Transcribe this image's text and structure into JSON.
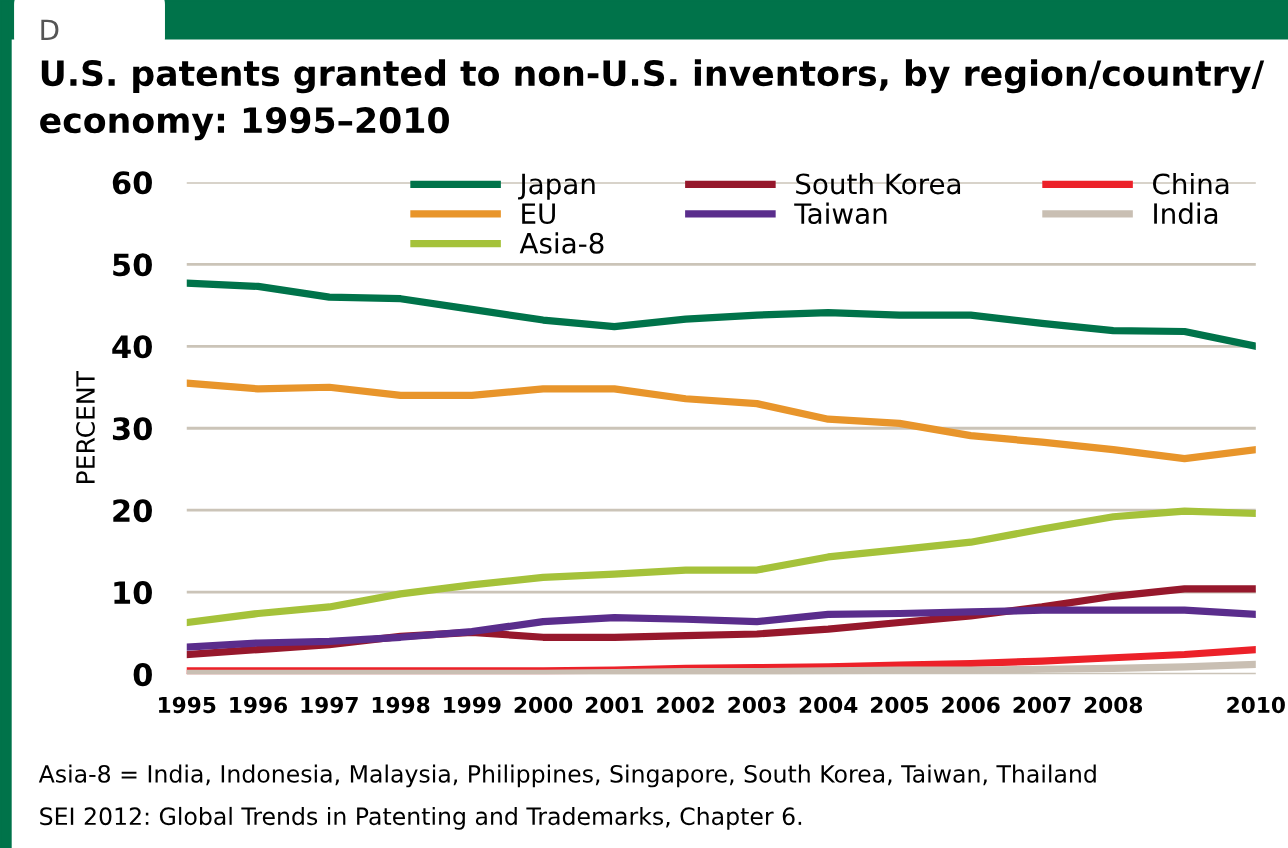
{
  "chart_data": {
    "type": "line",
    "title": "U.S. patents granted to non-U.S. inventors, by region/country/\neconomy: 1995–2010",
    "ylabel": "PERCENT",
    "x": [
      1995,
      1996,
      1997,
      1998,
      1999,
      2000,
      2001,
      2002,
      2003,
      2004,
      2005,
      2006,
      2007,
      2008,
      2009,
      2010
    ],
    "series": [
      {
        "name": "Japan",
        "color": "#00734a",
        "values": [
          47.7,
          47.3,
          46,
          45.8,
          44.5,
          43.2,
          42.4,
          43.3,
          43.8,
          44.1,
          43.8,
          43.8,
          42.8,
          41.9,
          41.8,
          40.0
        ]
      },
      {
        "name": "EU",
        "color": "#e8952b",
        "values": [
          35.5,
          34.8,
          35,
          34,
          34,
          34.8,
          34.8,
          33.6,
          33,
          31.1,
          30.6,
          29.1,
          28.3,
          27.4,
          26.3,
          27.4
        ]
      },
      {
        "name": "Asia-8",
        "color": "#a5c23a",
        "values": [
          6.3,
          7.4,
          8.2,
          9.8,
          10.9,
          11.8,
          12.2,
          12.7,
          12.7,
          14.3,
          15.2,
          16.1,
          17.7,
          19.2,
          19.9,
          19.6
        ]
      },
      {
        "name": "South Korea",
        "color": "#96182c",
        "values": [
          2.4,
          3,
          3.6,
          4.6,
          5.1,
          4.5,
          4.5,
          4.7,
          4.9,
          5.5,
          6.3,
          7.1,
          8.2,
          9.5,
          10.4,
          10.4
        ]
      },
      {
        "name": "Taiwan",
        "color": "#5a2d8c",
        "values": [
          3.3,
          3.8,
          4,
          4.5,
          5.2,
          6.4,
          6.9,
          6.7,
          6.4,
          7.3,
          7.4,
          7.6,
          7.8,
          7.8,
          7.8,
          7.3
        ]
      },
      {
        "name": "China",
        "color": "#ec2129",
        "values": [
          0.4,
          0.4,
          0.4,
          0.4,
          0.4,
          0.4,
          0.5,
          0.7,
          0.8,
          0.9,
          1.1,
          1.3,
          1.6,
          2.0,
          2.4,
          3.0
        ]
      },
      {
        "name": "India",
        "color": "#c9bfb3",
        "values": [
          0.1,
          0.1,
          0.1,
          0.1,
          0.1,
          0.1,
          0.2,
          0.3,
          0.3,
          0.4,
          0.5,
          0.5,
          0.6,
          0.7,
          0.9,
          1.2
        ]
      }
    ],
    "xlim": [
      1995,
      2010
    ],
    "xticks": [
      1995,
      1996,
      1997,
      1998,
      1999,
      2000,
      2001,
      2002,
      2003,
      2004,
      2005,
      2006,
      2007,
      2008,
      2010
    ],
    "ylim": [
      0,
      60
    ],
    "yticks": [
      0,
      10,
      20,
      30,
      40,
      50,
      60
    ],
    "grid": "y",
    "legend": "top right",
    "marker": "none",
    "line_style": "solid",
    "annotations": [
      "D",
      "Asia-8 = India, Indonesia, Malaysia, Philippines, Singapore, South Korea, Taiwan, Thailand",
      "SEI 2012: Global Trends in Patenting and Trademarks, Chapter 6."
    ]
  }
}
